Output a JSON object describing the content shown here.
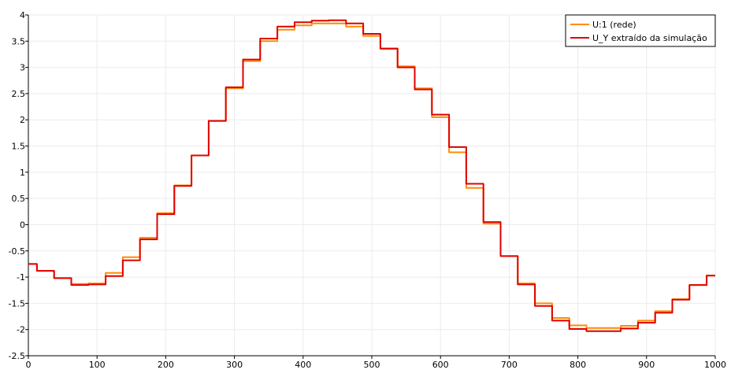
{
  "chart_data": {
    "type": "line",
    "title": "",
    "xlabel": "",
    "ylabel": "",
    "xlim": [
      0,
      1000
    ],
    "ylim": [
      -2.5,
      4
    ],
    "xticks": [
      "0",
      "100",
      "200",
      "300",
      "400",
      "500",
      "600",
      "700",
      "800",
      "900",
      "1000"
    ],
    "yticks": [
      "-2.5",
      "-2",
      "-1.5",
      "-1",
      "-0.5",
      "0",
      "0.5",
      "1",
      "1.5",
      "2",
      "2.5",
      "3",
      "3.5",
      "4"
    ],
    "grid": true,
    "legend_position": "top-right",
    "series": [
      {
        "name": "U:1 (rede)",
        "color": "#ff8c00",
        "x": [
          0,
          25,
          50,
          75,
          100,
          125,
          150,
          175,
          200,
          225,
          250,
          275,
          300,
          325,
          350,
          375,
          400,
          425,
          450,
          475,
          500,
          525,
          550,
          575,
          600,
          625,
          650,
          675,
          700,
          725,
          750,
          775,
          800,
          825,
          850,
          875,
          900,
          925,
          950,
          975,
          1000
        ],
        "y": [
          -0.75,
          -0.88,
          -1.02,
          -1.13,
          -1.12,
          -0.92,
          -0.62,
          -0.25,
          0.22,
          0.75,
          1.32,
          1.98,
          2.6,
          3.12,
          3.5,
          3.72,
          3.8,
          3.84,
          3.84,
          3.78,
          3.6,
          3.35,
          3.02,
          2.6,
          2.05,
          1.38,
          0.7,
          0.02,
          -0.6,
          -1.12,
          -1.5,
          -1.78,
          -1.92,
          -1.97,
          -1.97,
          -1.93,
          -1.83,
          -1.65,
          -1.42,
          -1.15,
          -0.97
        ]
      },
      {
        "name": "U_Y extraído da simulação",
        "color": "#e00000",
        "x": [
          0,
          25,
          50,
          75,
          100,
          125,
          150,
          175,
          200,
          225,
          250,
          275,
          300,
          325,
          350,
          375,
          400,
          425,
          450,
          475,
          500,
          525,
          550,
          575,
          600,
          625,
          650,
          675,
          700,
          725,
          750,
          775,
          800,
          825,
          850,
          875,
          900,
          925,
          950,
          975,
          1000
        ],
        "y": [
          -0.75,
          -0.88,
          -1.02,
          -1.15,
          -1.14,
          -0.98,
          -0.68,
          -0.28,
          0.2,
          0.74,
          1.32,
          1.98,
          2.62,
          3.15,
          3.55,
          3.78,
          3.86,
          3.89,
          3.9,
          3.84,
          3.64,
          3.36,
          3.0,
          2.58,
          2.1,
          1.48,
          0.78,
          0.05,
          -0.6,
          -1.14,
          -1.55,
          -1.83,
          -1.99,
          -2.03,
          -2.03,
          -1.98,
          -1.87,
          -1.68,
          -1.43,
          -1.15,
          -0.97
        ]
      }
    ]
  }
}
